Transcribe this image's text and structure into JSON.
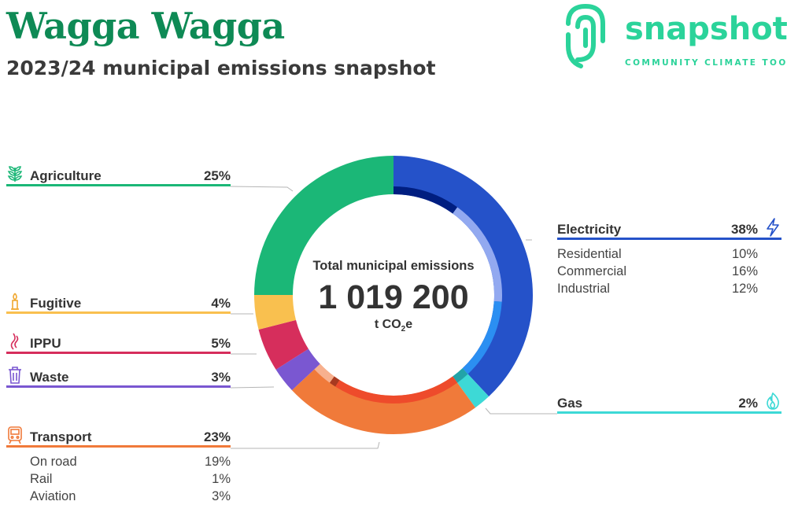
{
  "title": "Wagga Wagga",
  "subtitle": "2023/24 municipal emissions snapshot",
  "logo": {
    "word": "snapshot",
    "tagline": "COMMUNITY CLIMATE TOOL"
  },
  "center": {
    "label": "Total municipal emissions",
    "value": "1 019 200",
    "unit_prefix": "t CO",
    "unit_sub": "2",
    "unit_suffix": "e"
  },
  "legend": {
    "agriculture": {
      "label": "Agriculture",
      "pct": "25%",
      "color": "#1bb777",
      "icon": "plant-icon"
    },
    "fugitive": {
      "label": "Fugitive",
      "pct": "4%",
      "color": "#f9c04f",
      "icon": "flare-icon"
    },
    "ippu": {
      "label": "IPPU",
      "pct": "5%",
      "color": "#d62e5c",
      "icon": "smoke-icon"
    },
    "waste": {
      "label": "Waste",
      "pct": "3%",
      "color": "#7a57d1",
      "icon": "bin-icon"
    },
    "transport": {
      "label": "Transport",
      "pct": "23%",
      "color": "#f07a3a",
      "icon": "train-icon",
      "subs": [
        {
          "label": "On road",
          "pct": "19%"
        },
        {
          "label": "Rail",
          "pct": "1%"
        },
        {
          "label": "Aviation",
          "pct": "3%"
        }
      ]
    },
    "electricity": {
      "label": "Electricity",
      "pct": "38%",
      "color": "#2552c9",
      "icon": "lightning-icon",
      "subs": [
        {
          "label": "Residential",
          "pct": "10%"
        },
        {
          "label": "Commercial",
          "pct": "16%"
        },
        {
          "label": "Industrial",
          "pct": "12%"
        }
      ]
    },
    "gas": {
      "label": "Gas",
      "pct": "2%",
      "color": "#3dd9d6",
      "icon": "flame-icon"
    }
  },
  "chart_data": {
    "type": "pie",
    "total": 1019200,
    "unit": "t CO2e",
    "order": "clockwise from top",
    "series": [
      {
        "name": "Electricity",
        "value": 38,
        "color": "#2552c9",
        "subs": [
          {
            "name": "Residential",
            "value": 10,
            "color": "#001e80"
          },
          {
            "name": "Commercial",
            "value": 16,
            "color": "#92a9f0"
          },
          {
            "name": "Industrial",
            "value": 12,
            "color": "#2b8ff2"
          }
        ]
      },
      {
        "name": "Gas",
        "value": 2,
        "color": "#3dd9d6",
        "subs": [
          {
            "name": "",
            "value": 2,
            "color": "#22a3a8"
          }
        ]
      },
      {
        "name": "Transport",
        "value": 23,
        "color": "#f07a3a",
        "subs": [
          {
            "name": "On road",
            "value": 19,
            "color": "#ee4b2b"
          },
          {
            "name": "Rail",
            "value": 1,
            "color": "#a83a20"
          },
          {
            "name": "Aviation",
            "value": 3,
            "color": "#f7b08e"
          }
        ]
      },
      {
        "name": "Waste",
        "value": 3,
        "color": "#7a57d1"
      },
      {
        "name": "IPPU",
        "value": 5,
        "color": "#d62e5c"
      },
      {
        "name": "Fugitive",
        "value": 4,
        "color": "#f9c04f"
      },
      {
        "name": "Agriculture",
        "value": 25,
        "color": "#1bb777"
      }
    ]
  }
}
